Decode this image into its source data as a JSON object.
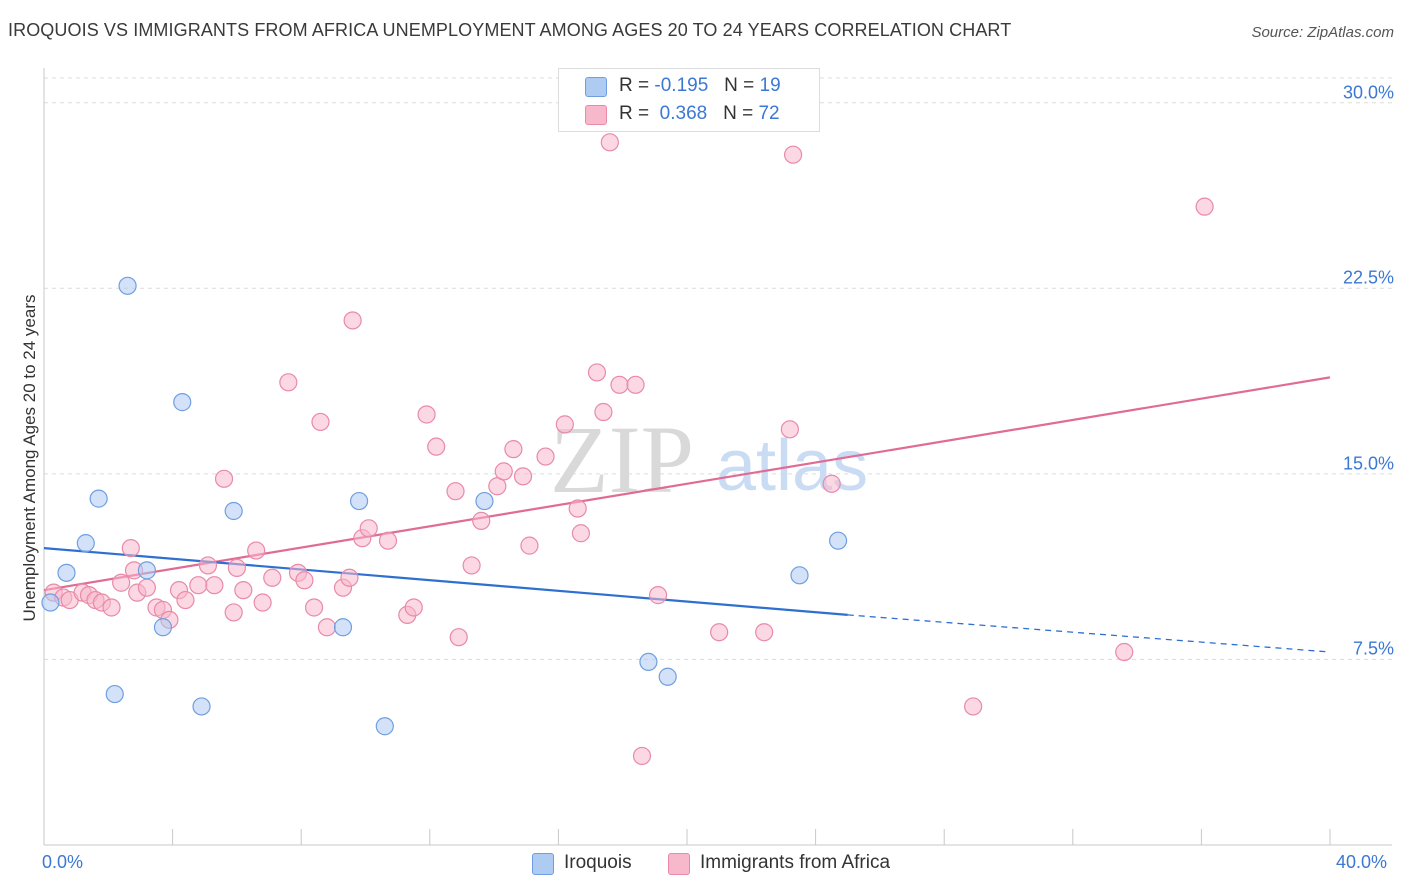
{
  "title": "IROQUOIS VS IMMIGRANTS FROM AFRICA UNEMPLOYMENT AMONG AGES 20 TO 24 YEARS CORRELATION CHART",
  "source": "Source: ZipAtlas.com",
  "watermark": {
    "zip": "ZIP",
    "atlas": "atlas"
  },
  "colors": {
    "blue_fill": "#aecbf2",
    "blue_stroke": "#6f9fe0",
    "blue_line": "#2e6fd1",
    "pink_fill": "#f7b8cc",
    "pink_stroke": "#e88aa8",
    "pink_line": "#e06b95",
    "tick_label": "#3b78d4",
    "grid": "#dcdcdc"
  },
  "legend": {
    "rows": [
      {
        "r_label": "R =",
        "r_value": "-0.195",
        "n_label": "N =",
        "n_value": "19"
      },
      {
        "r_label": "R =",
        "r_value": "0.368",
        "n_label": "N =",
        "n_value": "72"
      }
    ]
  },
  "chart_data": {
    "type": "scatter",
    "title": "IROQUOIS VS IMMIGRANTS FROM AFRICA UNEMPLOYMENT AMONG AGES 20 TO 24 YEARS CORRELATION CHART",
    "xlabel": "",
    "ylabel": "Unemployment Among Ages 20 to 24 years",
    "xlim": [
      0,
      40
    ],
    "ylim": [
      0,
      31
    ],
    "x_tick_labels": [
      "0.0%",
      "40.0%"
    ],
    "y_ticks": [
      7.5,
      15.0,
      22.5,
      30.0
    ],
    "y_tick_labels": [
      "7.5%",
      "15.0%",
      "22.5%",
      "30.0%"
    ],
    "grid": true,
    "legend_position": "bottom",
    "series": [
      {
        "name": "Iroquois",
        "color": "#aecbf2",
        "points": [
          [
            0.2,
            9.8
          ],
          [
            0.7,
            11.0
          ],
          [
            1.3,
            12.2
          ],
          [
            1.7,
            14.0
          ],
          [
            2.2,
            6.1
          ],
          [
            2.6,
            22.6
          ],
          [
            3.2,
            11.1
          ],
          [
            3.7,
            8.8
          ],
          [
            4.3,
            17.9
          ],
          [
            4.9,
            5.6
          ],
          [
            5.9,
            13.5
          ],
          [
            9.3,
            8.8
          ],
          [
            9.8,
            13.9
          ],
          [
            10.6,
            4.8
          ],
          [
            13.7,
            13.9
          ],
          [
            18.8,
            7.4
          ],
          [
            19.4,
            6.8
          ],
          [
            23.5,
            10.9
          ],
          [
            24.7,
            12.3
          ]
        ],
        "trend": {
          "x": [
            0.0,
            25.0
          ],
          "y": [
            12.0,
            9.3
          ],
          "dashed_to": [
            40.0,
            7.8
          ]
        }
      },
      {
        "name": "Immigrants from Africa",
        "color": "#f7b8cc",
        "points": [
          [
            0.3,
            10.2
          ],
          [
            0.6,
            10.0
          ],
          [
            0.8,
            9.9
          ],
          [
            1.2,
            10.2
          ],
          [
            1.4,
            10.1
          ],
          [
            1.6,
            9.9
          ],
          [
            1.8,
            9.8
          ],
          [
            2.1,
            9.6
          ],
          [
            2.4,
            10.6
          ],
          [
            2.7,
            12.0
          ],
          [
            2.8,
            11.1
          ],
          [
            2.9,
            10.2
          ],
          [
            3.2,
            10.4
          ],
          [
            3.5,
            9.6
          ],
          [
            3.7,
            9.5
          ],
          [
            3.9,
            9.1
          ],
          [
            4.2,
            10.3
          ],
          [
            4.4,
            9.9
          ],
          [
            4.8,
            10.5
          ],
          [
            5.1,
            11.3
          ],
          [
            5.3,
            10.5
          ],
          [
            5.6,
            14.8
          ],
          [
            5.9,
            9.4
          ],
          [
            6.0,
            11.2
          ],
          [
            6.2,
            10.3
          ],
          [
            6.6,
            11.9
          ],
          [
            6.8,
            9.8
          ],
          [
            7.1,
            10.8
          ],
          [
            7.6,
            18.7
          ],
          [
            7.9,
            11.0
          ],
          [
            8.1,
            10.7
          ],
          [
            8.4,
            9.6
          ],
          [
            8.6,
            17.1
          ],
          [
            8.8,
            8.8
          ],
          [
            9.3,
            10.4
          ],
          [
            9.5,
            10.8
          ],
          [
            9.6,
            21.2
          ],
          [
            9.9,
            12.4
          ],
          [
            10.1,
            12.8
          ],
          [
            10.7,
            12.3
          ],
          [
            11.3,
            9.3
          ],
          [
            11.5,
            9.6
          ],
          [
            11.9,
            17.4
          ],
          [
            12.2,
            16.1
          ],
          [
            12.8,
            14.3
          ],
          [
            12.9,
            8.4
          ],
          [
            13.3,
            11.3
          ],
          [
            13.6,
            13.1
          ],
          [
            14.1,
            14.5
          ],
          [
            14.3,
            15.1
          ],
          [
            14.6,
            16.0
          ],
          [
            14.9,
            14.9
          ],
          [
            15.1,
            12.1
          ],
          [
            15.6,
            15.7
          ],
          [
            16.2,
            17.0
          ],
          [
            16.6,
            13.6
          ],
          [
            16.7,
            12.6
          ],
          [
            17.2,
            19.1
          ],
          [
            17.4,
            17.5
          ],
          [
            17.6,
            28.4
          ],
          [
            17.9,
            18.6
          ],
          [
            18.4,
            18.6
          ],
          [
            18.6,
            3.6
          ],
          [
            19.1,
            10.1
          ],
          [
            21.0,
            8.6
          ],
          [
            22.4,
            8.6
          ],
          [
            23.2,
            16.8
          ],
          [
            23.3,
            27.9
          ],
          [
            24.5,
            14.6
          ],
          [
            28.9,
            5.6
          ],
          [
            33.6,
            7.8
          ],
          [
            36.1,
            25.8
          ]
        ],
        "trend": {
          "x": [
            0.0,
            40.0
          ],
          "y": [
            10.3,
            18.9
          ]
        }
      }
    ]
  },
  "bottom_legend": [
    {
      "label": "Iroquois"
    },
    {
      "label": "Immigrants from Africa"
    }
  ]
}
